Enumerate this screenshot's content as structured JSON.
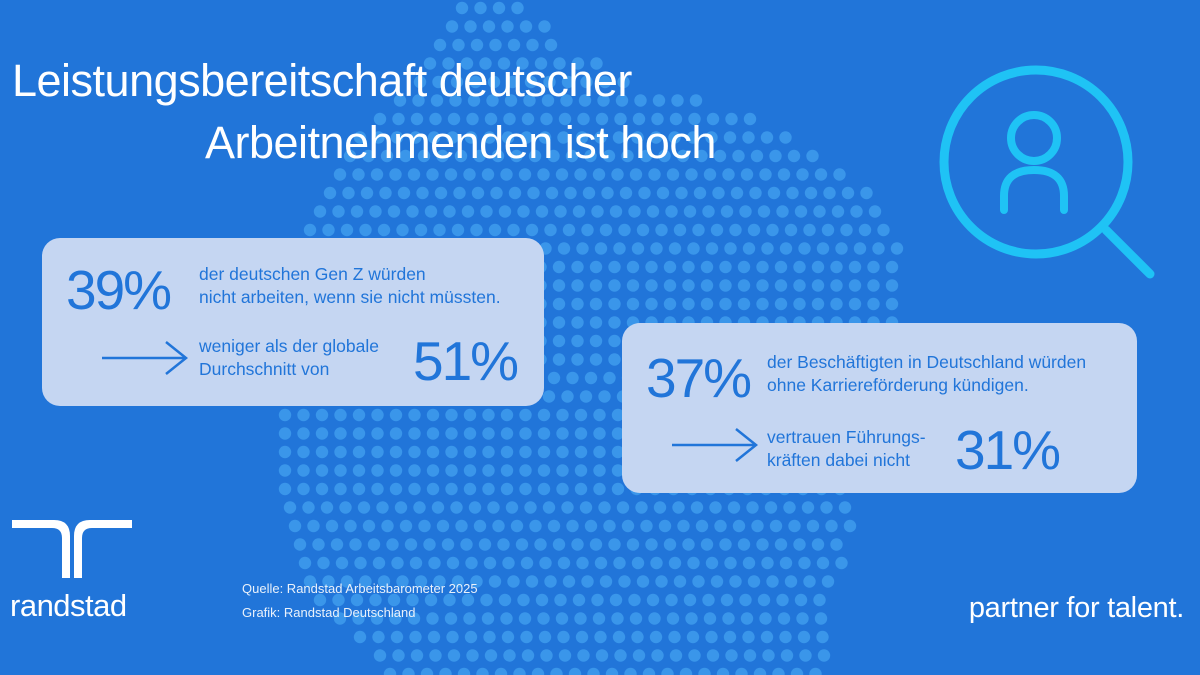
{
  "title": {
    "line1": "Leistungsbereitschaft deutscher",
    "line2": "Arbeitnehmenden ist hoch"
  },
  "stat1": {
    "percent": "39%",
    "text": "der  deutschen Gen Z würden\nnicht arbeiten, wenn sie nicht müssten.",
    "compare_text": "weniger als der globale\nDurchschnitt von",
    "compare_percent": "51%"
  },
  "stat2": {
    "percent": "37%",
    "text": "der Beschäftigten in Deutschland würden\nohne Karriereförderung kündigen.",
    "compare_text": "vertrauen Führungs-\nkräften dabei nicht",
    "compare_percent": "31%"
  },
  "source": {
    "line1": "Quelle: Randstad Arbeitsbarometer 2025",
    "line2": "Grafik: Randstad Deutschland"
  },
  "brand": "randstad",
  "tagline": "partner for talent.",
  "icons": {
    "main": "person-search-icon",
    "arrow": "arrow-right-icon",
    "logo": "randstad-logo-icon"
  },
  "colors": {
    "background": "#2175d9",
    "card": "#c5d6f2",
    "accent": "#2175d9",
    "icon": "#1fc3f5",
    "dots": "#3a96ea"
  }
}
